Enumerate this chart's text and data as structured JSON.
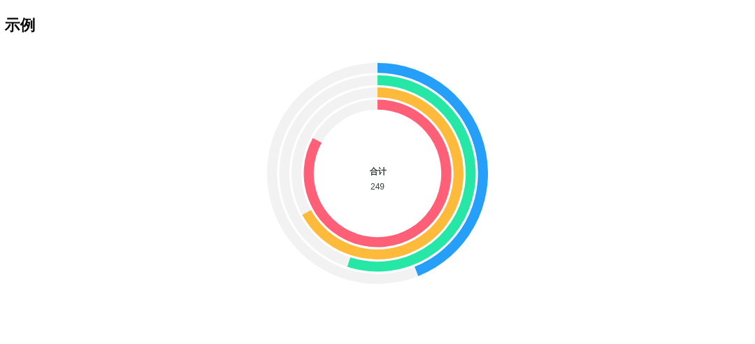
{
  "chart_data": {
    "type": "donut",
    "title": "示例",
    "categories": [
      null,
      null
    ],
    "series": [
      {
        "values": [
          44,
          56
        ],
        "colors": [
          "#269ffb",
          "#f2f2f2"
        ]
      },
      {
        "values": [
          55,
          45
        ],
        "colors": [
          "#26e7a5",
          "#f2f2f2"
        ]
      },
      {
        "values": [
          67,
          33
        ],
        "colors": [
          "#febb3b",
          "#f2f2f2"
        ]
      },
      {
        "values": [
          83,
          17
        ],
        "colors": [
          "#ff6077",
          "#f2f2f2"
        ]
      }
    ],
    "annotations": [
      "合计",
      "249"
    ]
  }
}
